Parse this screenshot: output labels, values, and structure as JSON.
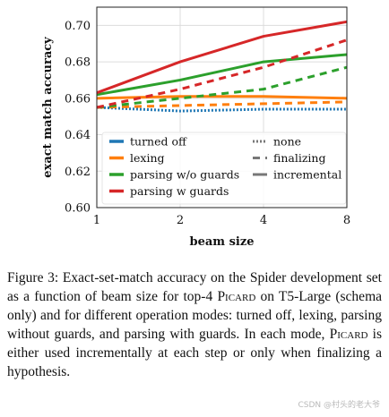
{
  "chart_data": {
    "type": "line",
    "xlabel": "beam size",
    "ylabel": "exact match accuracy",
    "x_ticks": [
      "1",
      "2",
      "4",
      "8"
    ],
    "x": [
      1,
      2,
      4,
      8
    ],
    "x_scale": "log2",
    "y_ticks": [
      "0.60",
      "0.62",
      "0.64",
      "0.66",
      "0.68",
      "0.70"
    ],
    "ylim": [
      0.6,
      0.71
    ],
    "grid": true,
    "legend_placement": "bottom-center",
    "series": [
      {
        "name": "turned off",
        "mode": "none",
        "color": "#1f77b4",
        "values": [
          0.655,
          0.653,
          0.654,
          0.654
        ]
      },
      {
        "name": "lexing",
        "mode": "finalizing",
        "color": "#ff7f0e",
        "values": [
          0.655,
          0.656,
          0.657,
          0.658
        ]
      },
      {
        "name": "lexing",
        "mode": "incremental",
        "color": "#ff7f0e",
        "values": [
          0.66,
          0.661,
          0.661,
          0.66
        ]
      },
      {
        "name": "parsing w/o guards",
        "mode": "finalizing",
        "color": "#2ca02c",
        "values": [
          0.655,
          0.66,
          0.665,
          0.677
        ]
      },
      {
        "name": "parsing w/o guards",
        "mode": "incremental",
        "color": "#2ca02c",
        "values": [
          0.662,
          0.67,
          0.68,
          0.684
        ]
      },
      {
        "name": "parsing w guards",
        "mode": "finalizing",
        "color": "#d62728",
        "values": [
          0.655,
          0.665,
          0.677,
          0.692
        ]
      },
      {
        "name": "parsing w guards",
        "mode": "incremental",
        "color": "#d62728",
        "values": [
          0.663,
          0.68,
          0.694,
          0.702
        ]
      }
    ],
    "legend": {
      "colors": [
        {
          "label": "turned off",
          "color": "#1f77b4"
        },
        {
          "label": "lexing",
          "color": "#ff7f0e"
        },
        {
          "label": "parsing w/o guards",
          "color": "#2ca02c"
        },
        {
          "label": "parsing w guards",
          "color": "#d62728"
        }
      ],
      "styles": [
        {
          "label": "none",
          "mode": "none"
        },
        {
          "label": "finalizing",
          "mode": "finalizing"
        },
        {
          "label": "incremental",
          "mode": "incremental"
        }
      ]
    }
  },
  "caption": {
    "part1": "Figure 3: Exact-set-match accuracy on the Spider development set as a function of beam size for top-4 ",
    "picard1": "Picard",
    "part2": " on T5-Large (schema only) and for different operation modes: turned off, lexing, parsing without guards, and parsing with guards. In each mode, ",
    "picard2": "Picard",
    "part3": " is either used incrementally at each step or only when finalizing a hypothesis."
  },
  "watermark": "CSDN @村头的老大爷"
}
